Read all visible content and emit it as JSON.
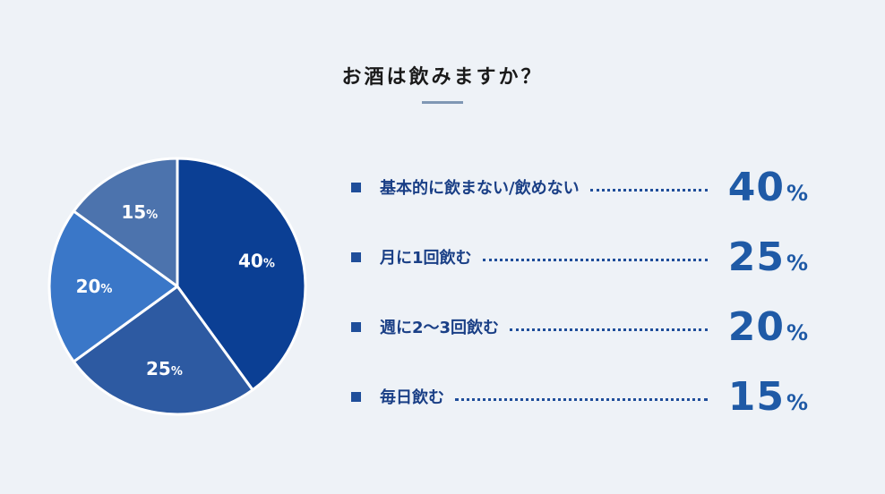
{
  "chart_data": {
    "type": "pie",
    "title": "お酒は飲みますか？",
    "percent_sign": "%",
    "categories": [
      "基本的に飲まない/飲めない",
      "月に1回飲む",
      "週に2〜3回飲む",
      "毎日飲む"
    ],
    "values": [
      40,
      25,
      20,
      15
    ],
    "colors": [
      "#0b3f94",
      "#2d5aa2",
      "#3a77c8",
      "#4c73ad"
    ],
    "legend": "right"
  },
  "style": {
    "background": "#eef2f7",
    "legend_marker_color": "#1f4e9a",
    "legend_label_color": "#1a3f86",
    "legend_value_color": "#1f5aa6"
  }
}
